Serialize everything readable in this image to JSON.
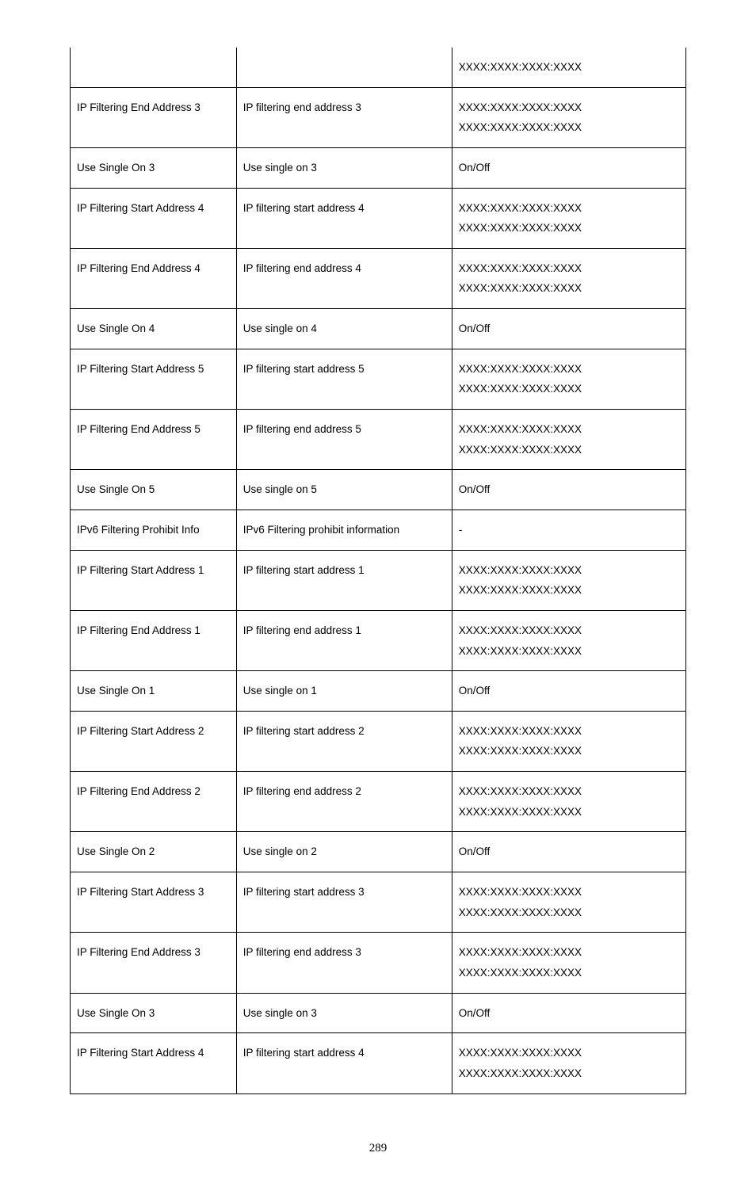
{
  "page_number": "289",
  "ipv6_double": "XXXX:XXXX:XXXX:XXXX\nXXXX:XXXX:XXXX:XXXX",
  "ipv6_single": "XXXX:XXXX:XXXX:XXXX",
  "onoff": "On/Off",
  "dash": "-",
  "rows": [
    {
      "c1": "",
      "c2": "",
      "c3_key": "ipv6_single",
      "first": true
    },
    {
      "c1": "IP Filtering End Address 3",
      "c2": "IP filtering end address 3",
      "c3_key": "ipv6_double"
    },
    {
      "c1": "Use Single On 3",
      "c2": "Use single on 3",
      "c3_key": "onoff"
    },
    {
      "c1": "IP Filtering Start Address 4",
      "c2": "IP filtering start address 4",
      "c3_key": "ipv6_double"
    },
    {
      "c1": "IP Filtering End Address 4",
      "c2": "IP filtering end address 4",
      "c3_key": "ipv6_double"
    },
    {
      "c1": "Use Single On 4",
      "c2": "Use single on 4",
      "c3_key": "onoff"
    },
    {
      "c1": "IP Filtering Start Address 5",
      "c2": "IP filtering start address 5",
      "c3_key": "ipv6_double"
    },
    {
      "c1": "IP Filtering End Address 5",
      "c2": "IP filtering end address 5",
      "c3_key": "ipv6_double"
    },
    {
      "c1": "Use Single On 5",
      "c2": "Use single on 5",
      "c3_key": "onoff"
    },
    {
      "c1": "IPv6 Filtering Prohibit Info",
      "c2": "IPv6 Filtering prohibit information",
      "c3_key": "dash"
    },
    {
      "c1": "IP Filtering Start Address 1",
      "c2": "IP filtering start address 1",
      "c3_key": "ipv6_double"
    },
    {
      "c1": "IP Filtering End Address 1",
      "c2": "IP filtering end address 1",
      "c3_key": "ipv6_double"
    },
    {
      "c1": "Use Single On 1",
      "c2": "Use single on 1",
      "c3_key": "onoff"
    },
    {
      "c1": "IP Filtering Start Address 2",
      "c2": "IP filtering start address 2",
      "c3_key": "ipv6_double"
    },
    {
      "c1": "IP Filtering End Address 2",
      "c2": "IP filtering end address 2",
      "c3_key": "ipv6_double"
    },
    {
      "c1": "Use Single On 2",
      "c2": "Use single on 2",
      "c3_key": "onoff"
    },
    {
      "c1": "IP Filtering Start Address 3",
      "c2": "IP filtering start address 3",
      "c3_key": "ipv6_double"
    },
    {
      "c1": "IP Filtering End Address 3",
      "c2": "IP filtering end address 3",
      "c3_key": "ipv6_double"
    },
    {
      "c1": "Use Single On 3",
      "c2": "Use single on 3",
      "c3_key": "onoff"
    },
    {
      "c1": "IP Filtering Start Address 4",
      "c2": "IP filtering start address 4",
      "c3_key": "ipv6_double"
    }
  ]
}
